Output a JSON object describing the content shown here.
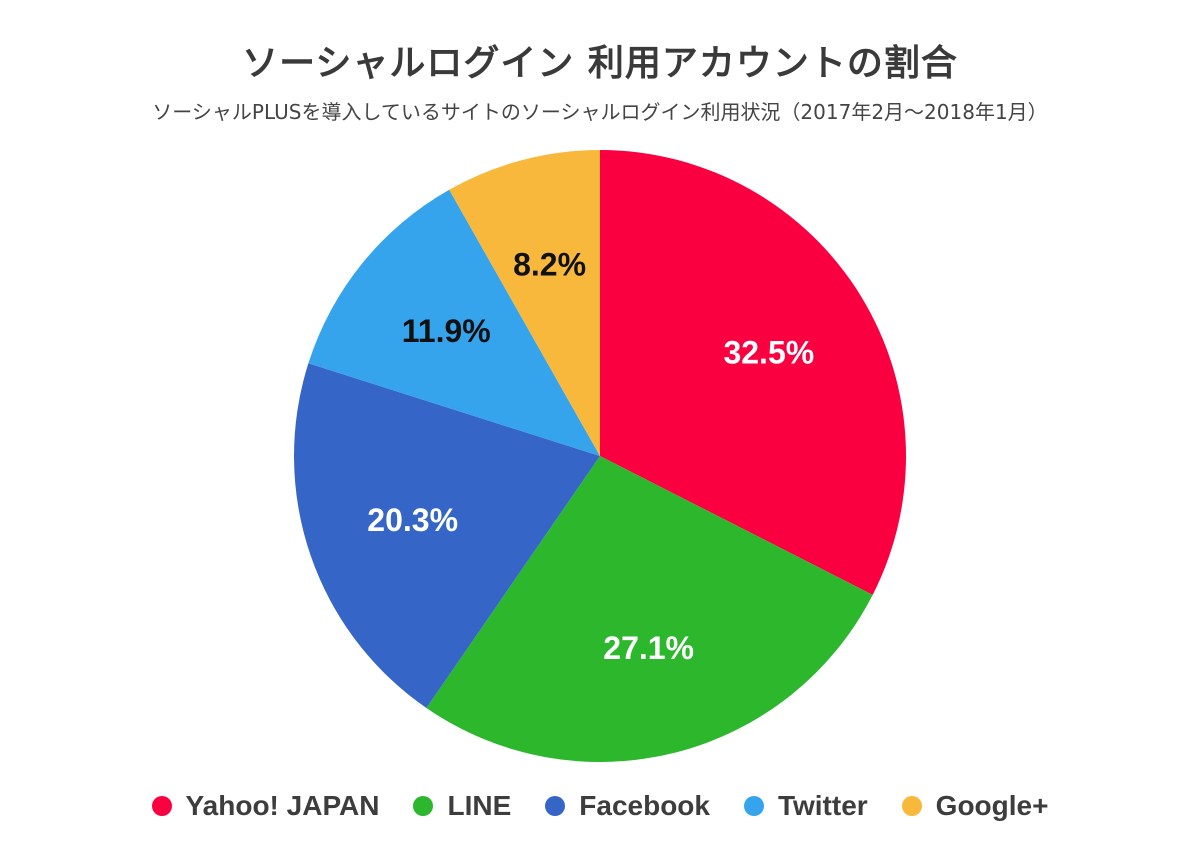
{
  "chart_data": {
    "type": "pie",
    "title": "ソーシャルログイン 利用アカウントの割合",
    "subtitle": "ソーシャルPLUSを導入しているサイトのソーシャルログイン利用状況（2017年2月〜2018年1月）",
    "slices": [
      {
        "name": "Yahoo! JAPAN",
        "value": 32.5,
        "label": "32.5%",
        "color": "#fa0040",
        "label_color": "#ffffff"
      },
      {
        "name": "LINE",
        "value": 27.1,
        "label": "27.1%",
        "color": "#2cb72c",
        "label_color": "#ffffff"
      },
      {
        "name": "Facebook",
        "value": 20.3,
        "label": "20.3%",
        "color": "#3566c7",
        "label_color": "#ffffff"
      },
      {
        "name": "Twitter",
        "value": 11.9,
        "label": "11.9%",
        "color": "#35a4ec",
        "label_color": "#111111"
      },
      {
        "name": "Google+",
        "value": 8.2,
        "label": "8.2%",
        "color": "#f7b83c",
        "label_color": "#111111"
      }
    ],
    "start_angle": "top",
    "direction": "clockwise",
    "legend_position": "bottom"
  }
}
